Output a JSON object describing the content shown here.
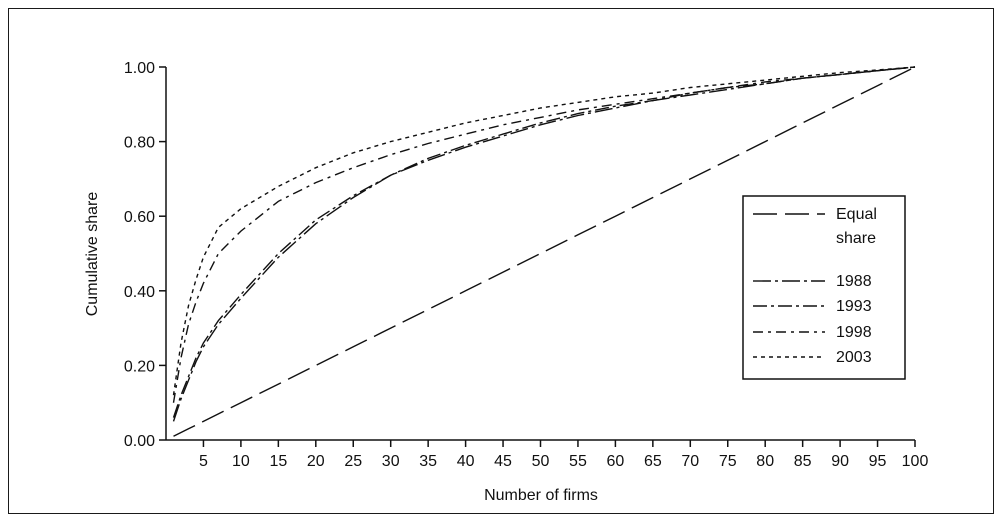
{
  "chart_data": {
    "type": "line",
    "title": "",
    "xlabel": "Number of firms",
    "ylabel": "Cumulative share",
    "xlim": [
      0,
      100
    ],
    "ylim": [
      0,
      1
    ],
    "x_ticks": [
      5,
      10,
      15,
      20,
      25,
      30,
      35,
      40,
      45,
      50,
      55,
      60,
      65,
      70,
      75,
      80,
      85,
      90,
      95,
      100
    ],
    "y_ticks": [
      "0.00",
      "0.20",
      "0.40",
      "0.60",
      "0.80",
      "1.00"
    ],
    "grid": false,
    "legend_position": "right",
    "x": [
      1,
      2,
      3,
      4,
      5,
      7,
      10,
      15,
      20,
      25,
      30,
      35,
      40,
      45,
      50,
      55,
      60,
      65,
      70,
      75,
      80,
      85,
      90,
      95,
      100
    ],
    "series": [
      {
        "name": "Equal share",
        "dash": "24,8",
        "values": [
          0.01,
          0.02,
          0.03,
          0.04,
          0.05,
          0.07,
          0.1,
          0.15,
          0.2,
          0.25,
          0.3,
          0.35,
          0.4,
          0.45,
          0.5,
          0.55,
          0.6,
          0.65,
          0.7,
          0.75,
          0.8,
          0.85,
          0.9,
          0.95,
          1.0
        ]
      },
      {
        "name": "1988",
        "dash": "18,4,3,4",
        "values": [
          0.05,
          0.11,
          0.16,
          0.21,
          0.25,
          0.31,
          0.38,
          0.49,
          0.58,
          0.65,
          0.71,
          0.75,
          0.785,
          0.815,
          0.845,
          0.87,
          0.89,
          0.91,
          0.925,
          0.94,
          0.955,
          0.97,
          0.98,
          0.99,
          1.0
        ]
      },
      {
        "name": "1993",
        "dash": "14,4,3,4",
        "values": [
          0.06,
          0.12,
          0.17,
          0.22,
          0.26,
          0.32,
          0.39,
          0.5,
          0.59,
          0.655,
          0.71,
          0.755,
          0.79,
          0.82,
          0.85,
          0.875,
          0.895,
          0.91,
          0.93,
          0.945,
          0.955,
          0.97,
          0.98,
          0.99,
          1.0
        ]
      },
      {
        "name": "1998",
        "dash": "10,5,3,5",
        "values": [
          0.1,
          0.22,
          0.31,
          0.37,
          0.42,
          0.5,
          0.56,
          0.64,
          0.69,
          0.73,
          0.765,
          0.795,
          0.82,
          0.845,
          0.865,
          0.885,
          0.9,
          0.915,
          0.93,
          0.945,
          0.96,
          0.97,
          0.98,
          0.99,
          1.0
        ]
      },
      {
        "name": "2003",
        "dash": "4,4",
        "values": [
          0.12,
          0.26,
          0.36,
          0.43,
          0.49,
          0.57,
          0.62,
          0.68,
          0.73,
          0.77,
          0.8,
          0.825,
          0.85,
          0.87,
          0.89,
          0.905,
          0.92,
          0.93,
          0.945,
          0.955,
          0.965,
          0.975,
          0.985,
          0.992,
          1.0
        ]
      }
    ],
    "legend_lines": [
      "Equal",
      "share",
      "1988",
      "1993",
      "1998",
      "2003"
    ]
  }
}
